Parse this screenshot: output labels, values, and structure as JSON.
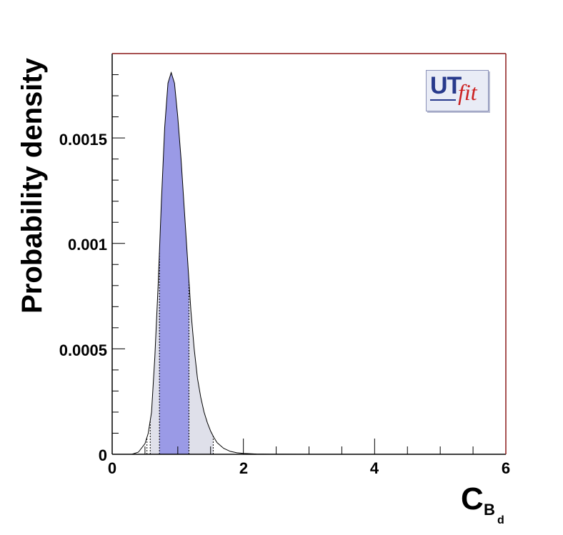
{
  "chart_data": {
    "type": "area",
    "title": "",
    "xlabel_main": "C",
    "xlabel_sub": "B",
    "xlabel_subsub": "d",
    "ylabel": "Probability density",
    "xlim": [
      0,
      6
    ],
    "ylim": [
      0,
      0.0019
    ],
    "x_ticks": [
      0,
      2,
      4,
      6
    ],
    "x_tick_labels": [
      "0",
      "2",
      "4",
      "6"
    ],
    "y_ticks": [
      0,
      0.0005,
      0.001,
      0.0015
    ],
    "y_tick_labels": [
      "0",
      "0.0005",
      "0.001",
      "0.0015"
    ],
    "grid": false,
    "series": [
      {
        "x": [
          0.3,
          0.4,
          0.5,
          0.55,
          0.6,
          0.65,
          0.7,
          0.75,
          0.8,
          0.85,
          0.9,
          0.95,
          1.0,
          1.05,
          1.1,
          1.15,
          1.2,
          1.25,
          1.3,
          1.35,
          1.4,
          1.45,
          1.5,
          1.55,
          1.6,
          1.7,
          1.8,
          1.9,
          2.0,
          2.2,
          2.4,
          2.6,
          3.0
        ],
        "y": [
          0.0,
          1e-05,
          5e-05,
          0.0001,
          0.0002,
          0.00046,
          0.0008,
          0.0012,
          0.00155,
          0.00176,
          0.00181,
          0.00176,
          0.0016,
          0.0014,
          0.00116,
          0.00092,
          0.00068,
          0.0005,
          0.00036,
          0.00027,
          0.0002,
          0.00015,
          0.00011,
          8e-05,
          5.5e-05,
          2.8e-05,
          1.4e-05,
          7e-06,
          4e-06,
          1.5e-06,
          5e-07,
          2e-07,
          0.0
        ]
      }
    ],
    "intervals": {
      "inner": [
        0.72,
        1.17
      ],
      "outer": [
        0.58,
        1.54
      ],
      "boundary_lines": [
        0.53,
        0.58,
        0.72,
        1.17,
        1.54
      ]
    },
    "colors": {
      "inner_fill": "#9a9ae6",
      "outer_fill": "#dfe0ea",
      "curve": "#000000",
      "frame": "#000000",
      "frame_right_top": "#8b1a1a"
    }
  },
  "logo": {
    "part1": "UT",
    "part2": "fit"
  }
}
